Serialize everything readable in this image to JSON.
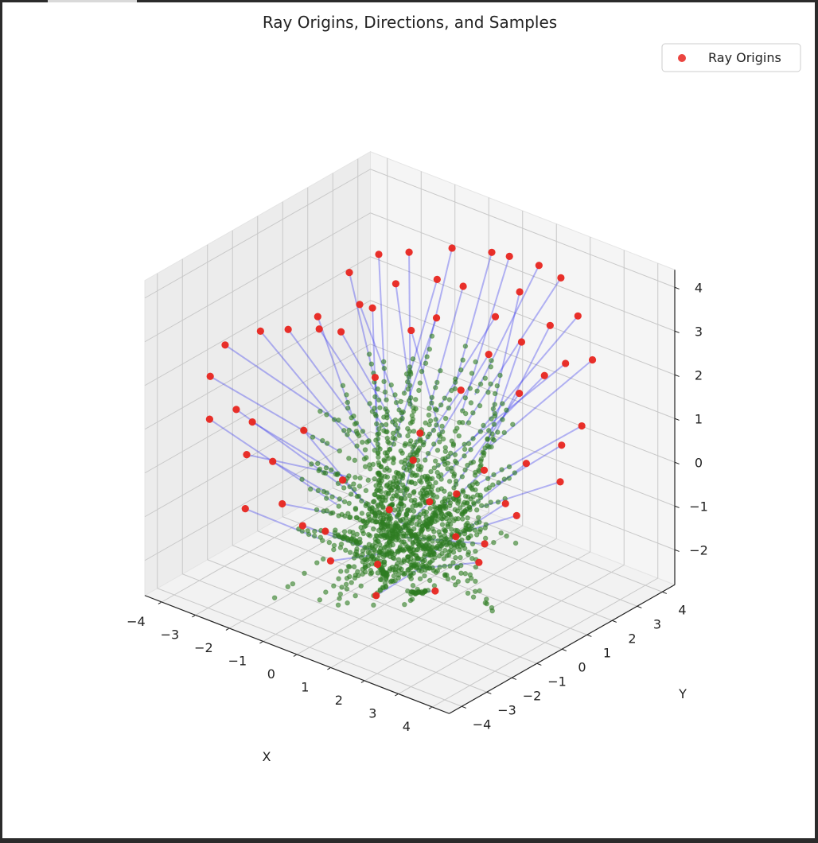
{
  "chart_data": {
    "type": "scatter",
    "subtype": "3d-scatter-with-ray-lines",
    "title": "Ray Origins, Directions, and Samples",
    "xlabel": "X",
    "ylabel": "Y",
    "zlabel": "",
    "xlim": [
      -4.5,
      4.5
    ],
    "ylim": [
      -4.5,
      4.5
    ],
    "zlim": [
      -2.8,
      4.4
    ],
    "x_ticks": [
      "−4",
      "−3",
      "−2",
      "−1",
      "0",
      "1",
      "2",
      "3",
      "4"
    ],
    "y_ticks": [
      "−4",
      "−3",
      "−2",
      "−1",
      "0",
      "1",
      "2",
      "3",
      "4"
    ],
    "z_ticks": [
      "−2",
      "−1",
      "0",
      "1",
      "2",
      "3",
      "4"
    ],
    "grid": true,
    "legend": {
      "position": "top-right",
      "entries": [
        "Ray Origins"
      ]
    },
    "series": [
      {
        "name": "Ray Origins",
        "color": "#e8251f",
        "marker": "circle",
        "count": 64
      },
      {
        "color": "#2f7d23",
        "marker": "circle",
        "role": "samples along rays"
      },
      {
        "color": "#3030ee",
        "marker": "line",
        "role": "ray directions"
      }
    ],
    "origins_xyz": [
      [
        -2.9,
        1.5,
        3.1
      ],
      [
        -1.8,
        2.4,
        3.6
      ],
      [
        -0.9,
        2.9,
        3.8
      ],
      [
        0.5,
        3.3,
        3.9
      ],
      [
        1.8,
        3.6,
        3.7
      ],
      [
        2.6,
        3.2,
        3.2
      ],
      [
        3.4,
        2.7,
        2.6
      ],
      [
        3.9,
        1.6,
        1.6
      ],
      [
        4.3,
        0.2,
        0.9
      ],
      [
        3.9,
        -1.0,
        0.4
      ],
      [
        3.6,
        -2.1,
        -0.4
      ],
      [
        2.9,
        -2.9,
        -1.0
      ],
      [
        1.6,
        -3.5,
        -1.3
      ],
      [
        0.4,
        -3.7,
        -0.8
      ],
      [
        -0.5,
        -3.6,
        -0.3
      ],
      [
        -1.9,
        -4.0,
        -0.2
      ],
      [
        -3.4,
        -3.4,
        1.2
      ],
      [
        -3.9,
        -2.7,
        1.8
      ],
      [
        -4.2,
        -1.7,
        2.1
      ],
      [
        -3.6,
        -1.1,
        2.4
      ],
      [
        -2.5,
        -0.3,
        2.8
      ],
      [
        -1.4,
        0.4,
        3.1
      ],
      [
        -0.1,
        1.2,
        3.0
      ],
      [
        1.0,
        1.8,
        2.3
      ],
      [
        1.6,
        2.3,
        2.6
      ],
      [
        2.2,
        1.4,
        1.9
      ],
      [
        -2.7,
        0.9,
        2.0
      ],
      [
        -1.1,
        0.1,
        1.7
      ],
      [
        0.6,
        -0.4,
        1.1
      ],
      [
        1.9,
        -0.7,
        0.2
      ],
      [
        0.8,
        -1.9,
        -0.1
      ],
      [
        -0.8,
        -1.6,
        0.0
      ],
      [
        -2.2,
        -2.5,
        0.3
      ],
      [
        3.0,
        0.6,
        0.8
      ],
      [
        2.4,
        -1.4,
        -0.4
      ],
      [
        -3.1,
        -2.1,
        0.8
      ],
      [
        -0.2,
        2.4,
        3.3
      ],
      [
        1.1,
        2.9,
        3.4
      ],
      [
        2.0,
        2.9,
        2.9
      ],
      [
        -1.6,
        1.6,
        3.2
      ],
      [
        -2.4,
        2.0,
        3.5
      ],
      [
        0.2,
        3.0,
        4.0
      ],
      [
        1.3,
        3.4,
        3.9
      ],
      [
        2.9,
        2.3,
        2.5
      ],
      [
        3.6,
        1.2,
        1.2
      ],
      [
        3.2,
        -0.5,
        0.3
      ],
      [
        1.2,
        -2.9,
        -0.9
      ],
      [
        -0.2,
        -3.1,
        -0.5
      ],
      [
        -1.4,
        -3.2,
        -0.2
      ],
      [
        -2.6,
        -3.0,
        0.5
      ],
      [
        -3.5,
        -2.2,
        1.0
      ],
      [
        -3.3,
        -0.4,
        2.3
      ],
      [
        -2.0,
        0.7,
        2.9
      ],
      [
        -0.6,
        1.9,
        3.5
      ],
      [
        0.9,
        2.2,
        3.0
      ],
      [
        2.5,
        2.0,
        2.2
      ],
      [
        3.4,
        -1.6,
        -0.2
      ],
      [
        -1.8,
        -1.8,
        0.9
      ],
      [
        0.1,
        0.0,
        0.2
      ],
      [
        1.4,
        -1.1,
        0.0
      ],
      [
        -0.7,
        1.0,
        2.6
      ],
      [
        2.2,
        0.0,
        0.6
      ],
      [
        -2.9,
        0.3,
        2.2
      ],
      [
        0.4,
        1.5,
        1.4
      ]
    ]
  }
}
